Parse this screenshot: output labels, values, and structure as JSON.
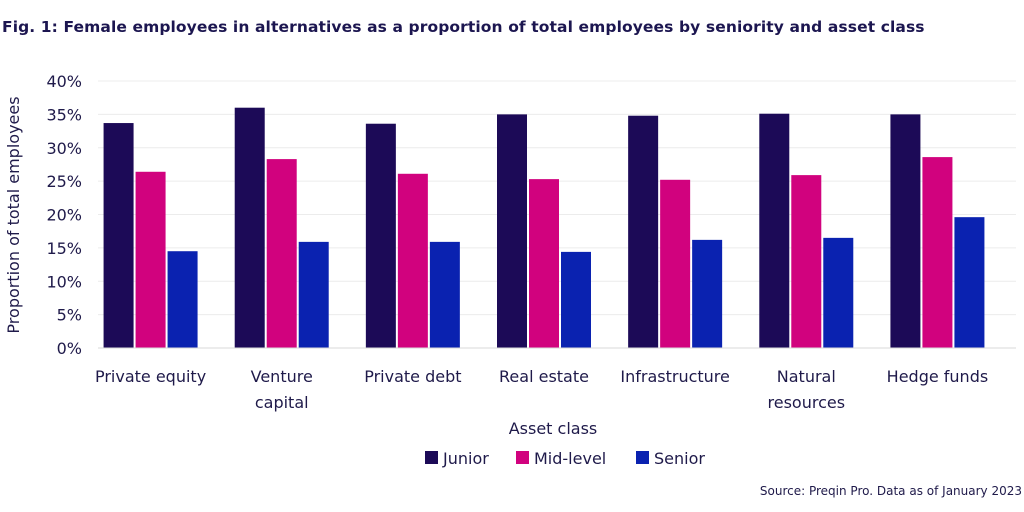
{
  "title": "Fig. 1: Female employees in alternatives as a proportion of total employees by seniority and asset class",
  "source": "Source: Preqin Pro. Data as of January 2023",
  "chart_data": {
    "type": "bar",
    "xlabel": "Asset class",
    "ylabel": "Proportion of total employees",
    "ylim": [
      0,
      40
    ],
    "yticks": [
      "0%",
      "5%",
      "10%",
      "15%",
      "20%",
      "25%",
      "30%",
      "35%",
      "40%"
    ],
    "grid": true,
    "legend_position": "bottom",
    "categories": [
      [
        "Private equity"
      ],
      [
        "Venture",
        "capital"
      ],
      [
        "Private debt"
      ],
      [
        "Real estate"
      ],
      [
        "Infrastructure"
      ],
      [
        "Natural",
        "resources"
      ],
      [
        "Hedge funds"
      ]
    ],
    "series": [
      {
        "name": "Junior",
        "color": "#1c0a57",
        "values": [
          33.7,
          36.0,
          33.6,
          35.0,
          34.8,
          35.1,
          35.0
        ]
      },
      {
        "name": "Mid-level",
        "color": "#d1027e",
        "values": [
          26.4,
          28.3,
          26.1,
          25.3,
          25.2,
          25.9,
          28.6
        ]
      },
      {
        "name": "Senior",
        "color": "#0a22b0",
        "values": [
          14.5,
          15.9,
          15.9,
          14.4,
          16.2,
          16.5,
          19.6
        ]
      }
    ]
  }
}
